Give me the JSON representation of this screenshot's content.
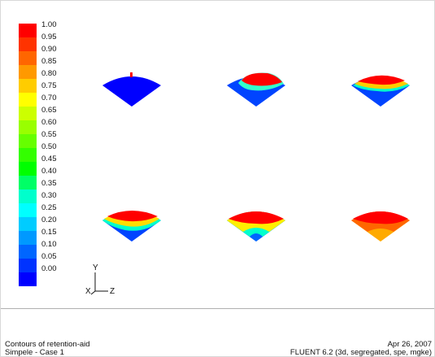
{
  "legend": {
    "ticks": [
      "1.00",
      "0.95",
      "0.90",
      "0.85",
      "0.80",
      "0.75",
      "0.70",
      "0.65",
      "0.60",
      "0.55",
      "0.50",
      "0.45",
      "0.40",
      "0.35",
      "0.30",
      "0.25",
      "0.20",
      "0.15",
      "0.10",
      "0.05",
      "0.00"
    ],
    "colors": [
      "#ff0000",
      "#ff3300",
      "#ff6600",
      "#ff9900",
      "#ffcc00",
      "#ffff00",
      "#ccff00",
      "#99ff00",
      "#66ff00",
      "#33ff00",
      "#00ff00",
      "#00ff66",
      "#00ffcc",
      "#00ffff",
      "#00ccff",
      "#0099ff",
      "#0066ff",
      "#0033ff",
      "#0000ff"
    ]
  },
  "axes": {
    "y_label": "Y",
    "x_label": "X",
    "z_label": "Z"
  },
  "footer": {
    "line1_left": "Contours of retention-aid",
    "line2_left": "Simpele - Case 1",
    "line1_right": "Apr 26, 2007",
    "line2_right": "FLUENT 6.2 (3d, segregated, spe, mgke)"
  },
  "contours": [
    {
      "red_fraction": 0.05
    },
    {
      "red_fraction": 0.45
    },
    {
      "red_fraction": 0.45
    },
    {
      "red_fraction": 0.55
    },
    {
      "red_fraction": 0.55
    },
    {
      "red_fraction": 0.55
    }
  ]
}
